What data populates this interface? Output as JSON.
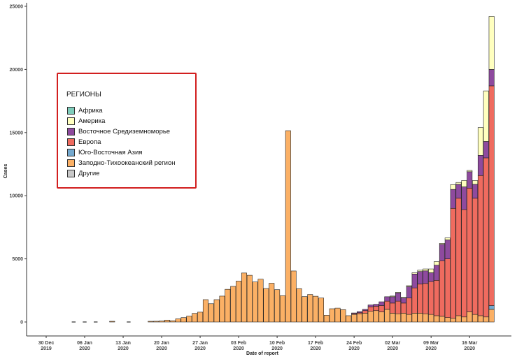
{
  "chart_data": {
    "type": "bar",
    "stacked": true,
    "xlabel": "Date of report",
    "ylabel": "Cases",
    "ylim": [
      0,
      25000
    ],
    "y_ticks": [
      "0",
      "5000",
      "10000",
      "15000",
      "20000",
      "25000"
    ],
    "x_ticks": [
      {
        "day": 0,
        "l1": "30 Dec",
        "l2": "2019"
      },
      {
        "day": 7,
        "l1": "06 Jan",
        "l2": "2020"
      },
      {
        "day": 14,
        "l1": "13 Jan",
        "l2": "2020"
      },
      {
        "day": 21,
        "l1": "20 Jan",
        "l2": "2020"
      },
      {
        "day": 28,
        "l1": "27 Jan",
        "l2": "2020"
      },
      {
        "day": 35,
        "l1": "03 Feb",
        "l2": "2020"
      },
      {
        "day": 42,
        "l1": "10 Feb",
        "l2": "2020"
      },
      {
        "day": 49,
        "l1": "17 Feb",
        "l2": "2020"
      },
      {
        "day": 56,
        "l1": "24 Feb",
        "l2": "2020"
      },
      {
        "day": 63,
        "l1": "02 Mar",
        "l2": "2020"
      },
      {
        "day": 70,
        "l1": "09 Mar",
        "l2": "2020"
      },
      {
        "day": 77,
        "l1": "16 Mar",
        "l2": "2020"
      }
    ],
    "legend": {
      "title": "РЕГИОНЫ",
      "position": "left",
      "entries": [
        {
          "name": "Африка",
          "color": "#7fcdbb"
        },
        {
          "name": "Америка",
          "color": "#ffffbf"
        },
        {
          "name": "Восточное Средиземноморье",
          "color": "#8e4a9e"
        },
        {
          "name": "Европа",
          "color": "#ef6b5f"
        },
        {
          "name": "Юго-Восточная Азия",
          "color": "#74a9cf"
        },
        {
          "name": "Заподно-Тихоокеанский регион",
          "color": "#fbb065"
        },
        {
          "name": "Другие",
          "color": "#c8c8c8"
        }
      ]
    },
    "series_colors": {
      "africa": "#7fcdbb",
      "americas": "#ffffbf",
      "emr": "#8e4a9e",
      "europe": "#ef6b5f",
      "sea": "#74a9cf",
      "wpr": "#fbb065",
      "other": "#c8c8c8"
    },
    "bars": [
      {
        "day": 5,
        "wpr": 0
      },
      {
        "day": 7,
        "wpr": 0
      },
      {
        "day": 9,
        "wpr": 0
      },
      {
        "day": 12,
        "wpr": 5
      },
      {
        "day": 15,
        "wpr": 0
      },
      {
        "day": 19,
        "wpr": 1
      },
      {
        "day": 20,
        "wpr": 60
      },
      {
        "day": 21,
        "wpr": 80
      },
      {
        "day": 22,
        "wpr": 150
      },
      {
        "day": 23,
        "wpr": 100
      },
      {
        "day": 24,
        "wpr": 250
      },
      {
        "day": 25,
        "wpr": 350
      },
      {
        "day": 26,
        "wpr": 470
      },
      {
        "day": 27,
        "wpr": 680
      },
      {
        "day": 28,
        "wpr": 780
      },
      {
        "day": 29,
        "wpr": 1770
      },
      {
        "day": 30,
        "wpr": 1450
      },
      {
        "day": 31,
        "wpr": 1770
      },
      {
        "day": 32,
        "wpr": 2050
      },
      {
        "day": 33,
        "wpr": 2590
      },
      {
        "day": 34,
        "wpr": 2820
      },
      {
        "day": 35,
        "wpr": 3240
      },
      {
        "day": 36,
        "wpr": 3880
      },
      {
        "day": 37,
        "wpr": 3700
      },
      {
        "day": 38,
        "wpr": 3170
      },
      {
        "day": 39,
        "wpr": 3390
      },
      {
        "day": 40,
        "wpr": 2650
      },
      {
        "day": 41,
        "wpr": 3070
      },
      {
        "day": 42,
        "wpr": 2560
      },
      {
        "day": 43,
        "wpr": 2080
      },
      {
        "day": 44,
        "wpr": 15150
      },
      {
        "day": 45,
        "wpr": 4040
      },
      {
        "day": 46,
        "wpr": 2640
      },
      {
        "day": 47,
        "wpr": 2010
      },
      {
        "day": 48,
        "wpr": 2180
      },
      {
        "day": 49,
        "wpr": 2040
      },
      {
        "day": 50,
        "wpr": 1900
      },
      {
        "day": 51,
        "wpr": 530
      },
      {
        "day": 52,
        "wpr": 1050
      },
      {
        "day": 53,
        "wpr": 1100
      },
      {
        "day": 54,
        "wpr": 980
      },
      {
        "day": 55,
        "wpr": 500
      },
      {
        "day": 56,
        "wpr": 600,
        "europe": 60,
        "emr": 40
      },
      {
        "day": 57,
        "wpr": 650,
        "europe": 80,
        "emr": 90
      },
      {
        "day": 58,
        "wpr": 700,
        "europe": 200,
        "emr": 100
      },
      {
        "day": 59,
        "wpr": 850,
        "europe": 350,
        "emr": 150
      },
      {
        "day": 60,
        "wpr": 900,
        "europe": 350,
        "emr": 150
      },
      {
        "day": 61,
        "wpr": 800,
        "europe": 500,
        "emr": 300
      },
      {
        "day": 62,
        "wpr": 1000,
        "europe": 650,
        "emr": 350
      },
      {
        "day": 63,
        "wpr": 700,
        "europe": 800,
        "emr": 500,
        "americas": 20
      },
      {
        "day": 64,
        "wpr": 650,
        "europe": 1000,
        "emr": 650,
        "americas": 40
      },
      {
        "day": 65,
        "wpr": 700,
        "europe": 800,
        "emr": 400,
        "americas": 60
      },
      {
        "day": 66,
        "wpr": 600,
        "europe": 1300,
        "emr": 900,
        "americas": 80
      },
      {
        "day": 67,
        "wpr": 700,
        "europe": 2000,
        "emr": 1100,
        "americas": 100
      },
      {
        "day": 68,
        "wpr": 700,
        "europe": 2300,
        "emr": 1000,
        "americas": 100
      },
      {
        "day": 69,
        "wpr": 650,
        "europe": 2400,
        "emr": 1000,
        "americas": 150
      },
      {
        "day": 70,
        "wpr": 600,
        "europe": 2600,
        "emr": 700,
        "americas": 300
      },
      {
        "day": 71,
        "wpr": 500,
        "europe": 2800,
        "emr": 1200,
        "americas": 280
      },
      {
        "day": 72,
        "wpr": 450,
        "europe": 4400,
        "emr": 1300,
        "americas": 80
      },
      {
        "day": 73,
        "wpr": 350,
        "europe": 4650,
        "emr": 1500,
        "americas": 160
      },
      {
        "day": 74,
        "wpr": 300,
        "europe": 8700,
        "emr": 1500,
        "americas": 380
      },
      {
        "day": 75,
        "wpr": 500,
        "europe": 9300,
        "emr": 1100,
        "americas": 150
      },
      {
        "day": 76,
        "wpr": 400,
        "europe": 8500,
        "emr": 1800,
        "americas": 500
      },
      {
        "day": 77,
        "wpr": 800,
        "europe": 9800,
        "emr": 1300,
        "americas": 100
      },
      {
        "day": 78,
        "wpr": 600,
        "europe": 9200,
        "emr": 1100,
        "americas": 300
      },
      {
        "day": 79,
        "wpr": 500,
        "europe": 11100,
        "emr": 1600,
        "americas": 2200
      },
      {
        "day": 80,
        "wpr": 400,
        "europe": 12600,
        "emr": 1300,
        "americas": 4000
      },
      {
        "day": 81,
        "wpr": 1000,
        "sea": 300,
        "europe": 17400,
        "emr": 1300,
        "americas": 4200
      }
    ]
  }
}
